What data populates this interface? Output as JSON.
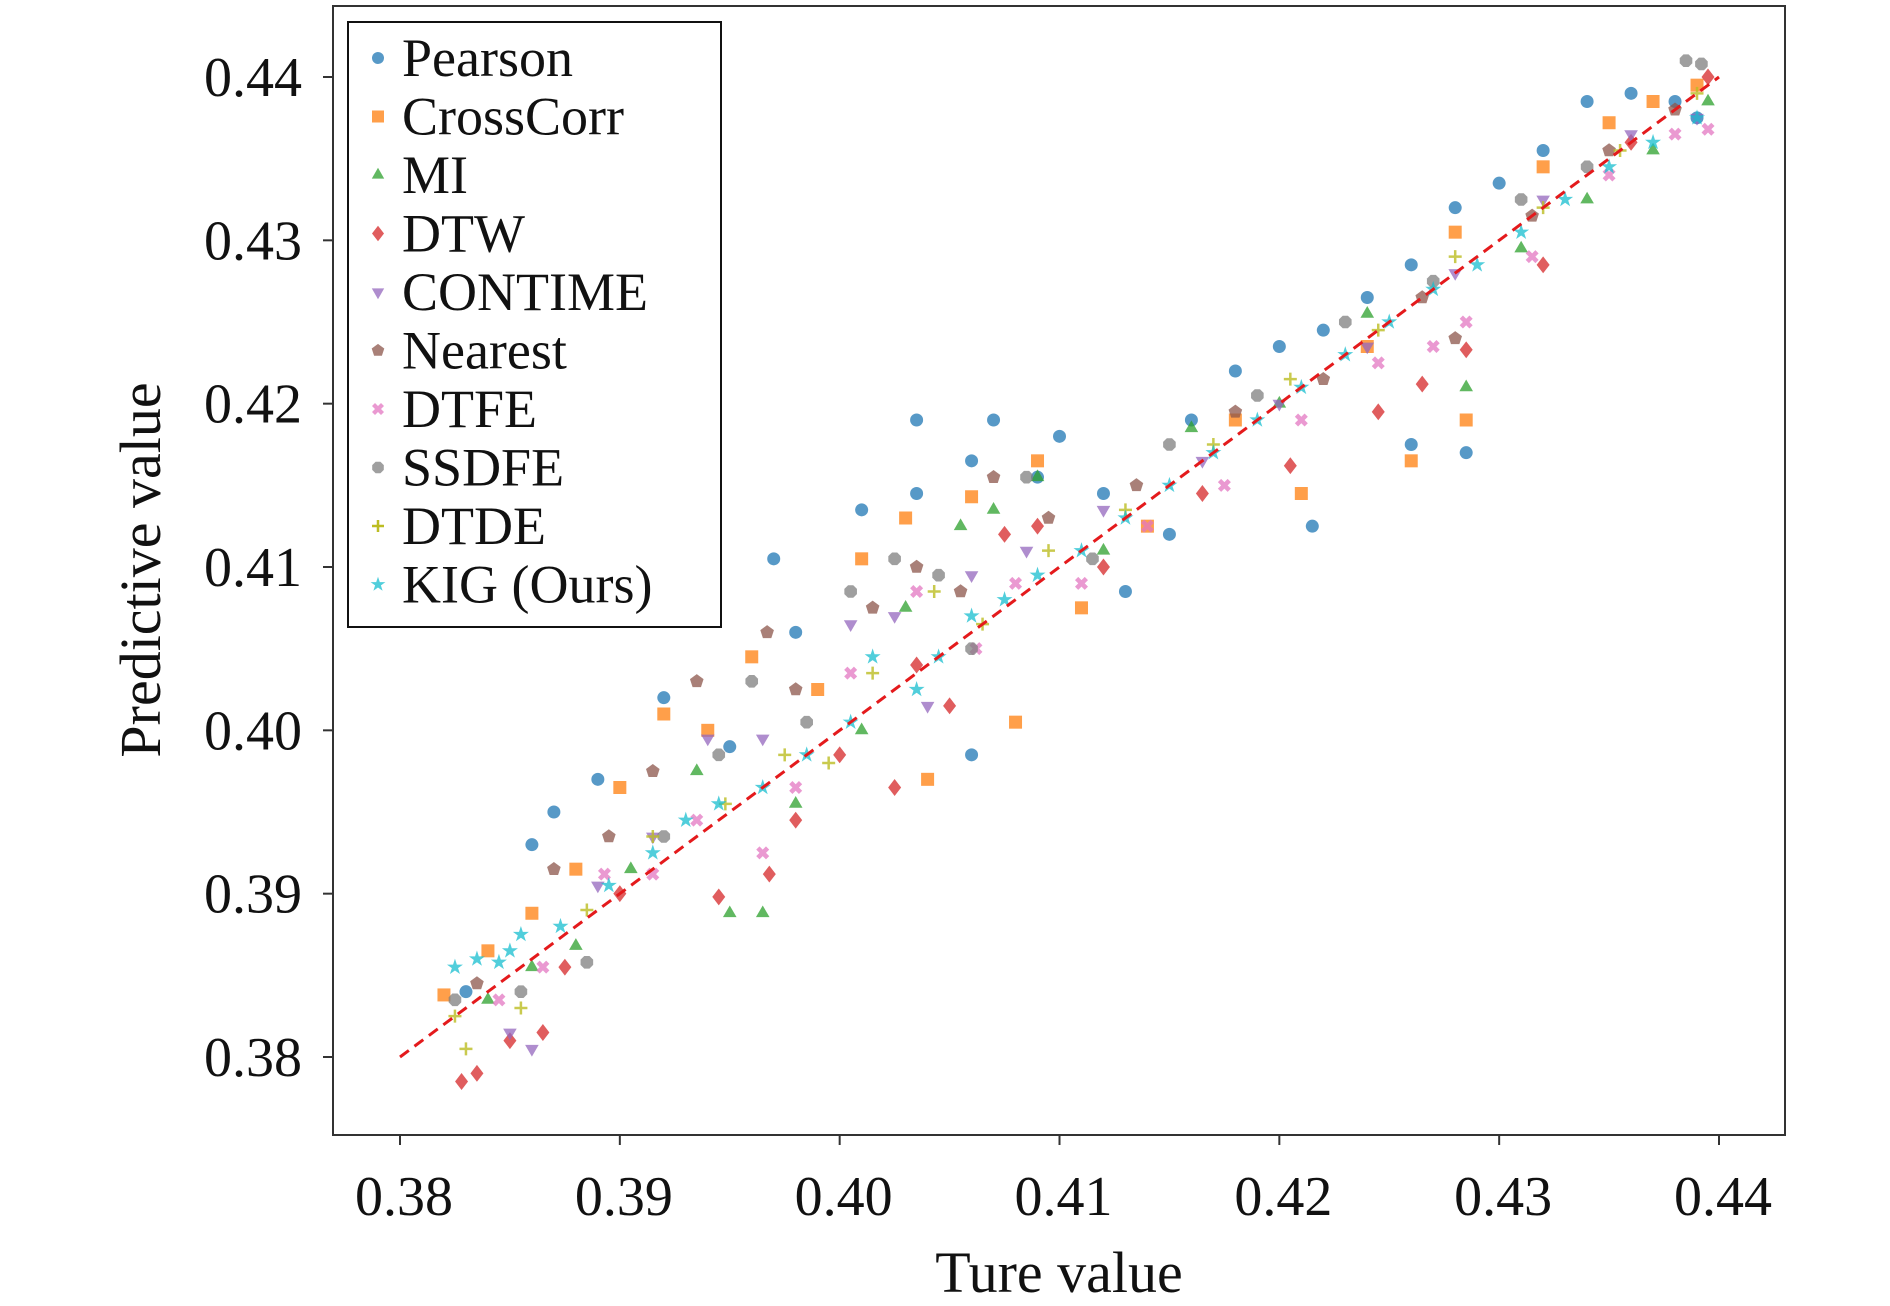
{
  "chart_data": {
    "type": "scatter",
    "xlabel": "Ture value",
    "ylabel": "Predictive value",
    "xlim": [
      0.377,
      0.443
    ],
    "ylim": [
      0.3755,
      0.4445
    ],
    "xticks": [
      "0.38",
      "0.39",
      "0.40",
      "0.41",
      "0.42",
      "0.43",
      "0.44"
    ],
    "yticks": [
      "0.38",
      "0.39",
      "0.40",
      "0.41",
      "0.42",
      "0.43",
      "0.44"
    ],
    "grid": false,
    "legend_position": "top-left",
    "reference_line": {
      "style": "dashed",
      "color": "#e41a1c",
      "from": [
        0.38,
        0.38
      ],
      "to": [
        0.44,
        0.44
      ]
    },
    "series": [
      {
        "name": "Pearson",
        "marker": "circle",
        "color": "#1f77b4",
        "points": [
          [
            0.383,
            0.384
          ],
          [
            0.386,
            0.393
          ],
          [
            0.387,
            0.395
          ],
          [
            0.389,
            0.397
          ],
          [
            0.392,
            0.402
          ],
          [
            0.395,
            0.399
          ],
          [
            0.397,
            0.4105
          ],
          [
            0.398,
            0.406
          ],
          [
            0.401,
            0.4135
          ],
          [
            0.4035,
            0.4145
          ],
          [
            0.4035,
            0.419
          ],
          [
            0.406,
            0.4165
          ],
          [
            0.407,
            0.419
          ],
          [
            0.406,
            0.3985
          ],
          [
            0.409,
            0.4155
          ],
          [
            0.41,
            0.418
          ],
          [
            0.412,
            0.4145
          ],
          [
            0.413,
            0.4085
          ],
          [
            0.415,
            0.412
          ],
          [
            0.416,
            0.419
          ],
          [
            0.418,
            0.422
          ],
          [
            0.42,
            0.4235
          ],
          [
            0.422,
            0.4245
          ],
          [
            0.4215,
            0.4125
          ],
          [
            0.424,
            0.4265
          ],
          [
            0.426,
            0.4285
          ],
          [
            0.426,
            0.4175
          ],
          [
            0.4285,
            0.417
          ],
          [
            0.428,
            0.432
          ],
          [
            0.43,
            0.4335
          ],
          [
            0.432,
            0.4355
          ],
          [
            0.434,
            0.4385
          ],
          [
            0.436,
            0.439
          ],
          [
            0.438,
            0.4385
          ],
          [
            0.439,
            0.4375
          ]
        ]
      },
      {
        "name": "CrossCorr",
        "marker": "square",
        "color": "#ff7f0e",
        "points": [
          [
            0.382,
            0.3838
          ],
          [
            0.384,
            0.3865
          ],
          [
            0.386,
            0.3888
          ],
          [
            0.388,
            0.3915
          ],
          [
            0.39,
            0.3965
          ],
          [
            0.392,
            0.401
          ],
          [
            0.394,
            0.4
          ],
          [
            0.396,
            0.4045
          ],
          [
            0.399,
            0.4025
          ],
          [
            0.401,
            0.4105
          ],
          [
            0.403,
            0.413
          ],
          [
            0.404,
            0.397
          ],
          [
            0.406,
            0.4143
          ],
          [
            0.408,
            0.4005
          ],
          [
            0.409,
            0.4165
          ],
          [
            0.411,
            0.4075
          ],
          [
            0.414,
            0.4125
          ],
          [
            0.418,
            0.419
          ],
          [
            0.421,
            0.4145
          ],
          [
            0.424,
            0.4235
          ],
          [
            0.426,
            0.4165
          ],
          [
            0.4285,
            0.419
          ],
          [
            0.428,
            0.4305
          ],
          [
            0.432,
            0.4345
          ],
          [
            0.435,
            0.4372
          ],
          [
            0.437,
            0.4385
          ],
          [
            0.439,
            0.4395
          ]
        ]
      },
      {
        "name": "MI",
        "marker": "triangle-up",
        "color": "#2ca02c",
        "points": [
          [
            0.384,
            0.3835
          ],
          [
            0.386,
            0.3855
          ],
          [
            0.388,
            0.3868
          ],
          [
            0.3905,
            0.3915
          ],
          [
            0.3935,
            0.3975
          ],
          [
            0.395,
            0.3888
          ],
          [
            0.3965,
            0.3888
          ],
          [
            0.398,
            0.3955
          ],
          [
            0.401,
            0.4
          ],
          [
            0.403,
            0.4075
          ],
          [
            0.4055,
            0.4125
          ],
          [
            0.407,
            0.4135
          ],
          [
            0.409,
            0.4155
          ],
          [
            0.412,
            0.411
          ],
          [
            0.416,
            0.4185
          ],
          [
            0.42,
            0.42
          ],
          [
            0.424,
            0.4255
          ],
          [
            0.4285,
            0.421
          ],
          [
            0.431,
            0.4295
          ],
          [
            0.434,
            0.4325
          ],
          [
            0.437,
            0.4355
          ],
          [
            0.4395,
            0.4385
          ]
        ]
      },
      {
        "name": "DTW",
        "marker": "diamond",
        "color": "#d62728",
        "points": [
          [
            0.3828,
            0.3785
          ],
          [
            0.3835,
            0.379
          ],
          [
            0.385,
            0.381
          ],
          [
            0.3865,
            0.3815
          ],
          [
            0.3875,
            0.3855
          ],
          [
            0.39,
            0.39
          ],
          [
            0.3945,
            0.3898
          ],
          [
            0.3968,
            0.3912
          ],
          [
            0.398,
            0.3945
          ],
          [
            0.4,
            0.3985
          ],
          [
            0.4025,
            0.3965
          ],
          [
            0.4035,
            0.404
          ],
          [
            0.405,
            0.4015
          ],
          [
            0.4075,
            0.412
          ],
          [
            0.409,
            0.4125
          ],
          [
            0.412,
            0.41
          ],
          [
            0.4165,
            0.4145
          ],
          [
            0.4205,
            0.4162
          ],
          [
            0.4245,
            0.4195
          ],
          [
            0.4265,
            0.4212
          ],
          [
            0.4285,
            0.4233
          ],
          [
            0.432,
            0.4285
          ],
          [
            0.436,
            0.436
          ],
          [
            0.4395,
            0.44
          ]
        ]
      },
      {
        "name": "CONTIME",
        "marker": "triangle-down",
        "color": "#9467bd",
        "points": [
          [
            0.385,
            0.3815
          ],
          [
            0.386,
            0.3805
          ],
          [
            0.389,
            0.3905
          ],
          [
            0.3915,
            0.3935
          ],
          [
            0.394,
            0.3995
          ],
          [
            0.3965,
            0.3995
          ],
          [
            0.4005,
            0.4065
          ],
          [
            0.4025,
            0.407
          ],
          [
            0.404,
            0.4015
          ],
          [
            0.406,
            0.4095
          ],
          [
            0.4085,
            0.411
          ],
          [
            0.412,
            0.4135
          ],
          [
            0.4165,
            0.4165
          ],
          [
            0.42,
            0.42
          ],
          [
            0.424,
            0.4235
          ],
          [
            0.428,
            0.428
          ],
          [
            0.432,
            0.4325
          ],
          [
            0.436,
            0.4365
          ],
          [
            0.439,
            0.4375
          ]
        ]
      },
      {
        "name": "Nearest",
        "marker": "pentagon",
        "color": "#8c564b",
        "points": [
          [
            0.3835,
            0.3845
          ],
          [
            0.387,
            0.3915
          ],
          [
            0.3895,
            0.3935
          ],
          [
            0.3915,
            0.3975
          ],
          [
            0.3935,
            0.403
          ],
          [
            0.3967,
            0.406
          ],
          [
            0.398,
            0.4025
          ],
          [
            0.4015,
            0.4075
          ],
          [
            0.4035,
            0.41
          ],
          [
            0.4055,
            0.4085
          ],
          [
            0.407,
            0.4155
          ],
          [
            0.4095,
            0.413
          ],
          [
            0.4135,
            0.415
          ],
          [
            0.418,
            0.4195
          ],
          [
            0.422,
            0.4215
          ],
          [
            0.4265,
            0.4265
          ],
          [
            0.428,
            0.424
          ],
          [
            0.4315,
            0.4315
          ],
          [
            0.435,
            0.4355
          ],
          [
            0.438,
            0.438
          ]
        ]
      },
      {
        "name": "DTFE",
        "marker": "x-filled",
        "color": "#e377c2",
        "points": [
          [
            0.3845,
            0.3835
          ],
          [
            0.3865,
            0.3855
          ],
          [
            0.3893,
            0.3912
          ],
          [
            0.3915,
            0.3912
          ],
          [
            0.3935,
            0.3945
          ],
          [
            0.3965,
            0.3925
          ],
          [
            0.398,
            0.3965
          ],
          [
            0.4005,
            0.4035
          ],
          [
            0.4035,
            0.4085
          ],
          [
            0.4062,
            0.405
          ],
          [
            0.408,
            0.409
          ],
          [
            0.411,
            0.409
          ],
          [
            0.414,
            0.4125
          ],
          [
            0.4175,
            0.415
          ],
          [
            0.421,
            0.419
          ],
          [
            0.4245,
            0.4225
          ],
          [
            0.427,
            0.4235
          ],
          [
            0.4285,
            0.425
          ],
          [
            0.4315,
            0.429
          ],
          [
            0.435,
            0.434
          ],
          [
            0.438,
            0.4365
          ],
          [
            0.4395,
            0.4368
          ]
        ]
      },
      {
        "name": "SSDFE",
        "marker": "octagon",
        "color": "#7f7f7f",
        "points": [
          [
            0.3825,
            0.3835
          ],
          [
            0.3855,
            0.384
          ],
          [
            0.3885,
            0.3858
          ],
          [
            0.392,
            0.3935
          ],
          [
            0.3945,
            0.3985
          ],
          [
            0.396,
            0.403
          ],
          [
            0.3985,
            0.4005
          ],
          [
            0.4005,
            0.4085
          ],
          [
            0.4025,
            0.4105
          ],
          [
            0.4045,
            0.4095
          ],
          [
            0.406,
            0.405
          ],
          [
            0.4085,
            0.4155
          ],
          [
            0.4115,
            0.4105
          ],
          [
            0.415,
            0.4175
          ],
          [
            0.419,
            0.4205
          ],
          [
            0.423,
            0.425
          ],
          [
            0.427,
            0.4275
          ],
          [
            0.431,
            0.4325
          ],
          [
            0.434,
            0.4345
          ],
          [
            0.4385,
            0.441
          ],
          [
            0.4392,
            0.4408
          ]
        ]
      },
      {
        "name": "DTDE",
        "marker": "plus",
        "color": "#bcbd22",
        "points": [
          [
            0.3825,
            0.3825
          ],
          [
            0.383,
            0.3805
          ],
          [
            0.3855,
            0.383
          ],
          [
            0.3885,
            0.389
          ],
          [
            0.3915,
            0.3935
          ],
          [
            0.3948,
            0.3955
          ],
          [
            0.3975,
            0.3985
          ],
          [
            0.3995,
            0.398
          ],
          [
            0.4015,
            0.4035
          ],
          [
            0.4043,
            0.4085
          ],
          [
            0.4065,
            0.4065
          ],
          [
            0.4095,
            0.411
          ],
          [
            0.413,
            0.4135
          ],
          [
            0.417,
            0.4175
          ],
          [
            0.4205,
            0.4215
          ],
          [
            0.4245,
            0.4245
          ],
          [
            0.428,
            0.429
          ],
          [
            0.432,
            0.432
          ],
          [
            0.4355,
            0.4355
          ],
          [
            0.439,
            0.439
          ]
        ]
      },
      {
        "name": "KIG (Ours)",
        "marker": "star",
        "color": "#17becf",
        "points": [
          [
            0.3825,
            0.3855
          ],
          [
            0.3835,
            0.386
          ],
          [
            0.3845,
            0.3858
          ],
          [
            0.385,
            0.3865
          ],
          [
            0.3855,
            0.3875
          ],
          [
            0.3873,
            0.388
          ],
          [
            0.3895,
            0.3905
          ],
          [
            0.3915,
            0.3925
          ],
          [
            0.393,
            0.3945
          ],
          [
            0.3945,
            0.3955
          ],
          [
            0.3965,
            0.3965
          ],
          [
            0.3985,
            0.3985
          ],
          [
            0.4005,
            0.4005
          ],
          [
            0.4015,
            0.4045
          ],
          [
            0.4035,
            0.4025
          ],
          [
            0.4045,
            0.4045
          ],
          [
            0.406,
            0.407
          ],
          [
            0.4075,
            0.408
          ],
          [
            0.409,
            0.4095
          ],
          [
            0.411,
            0.411
          ],
          [
            0.413,
            0.413
          ],
          [
            0.415,
            0.415
          ],
          [
            0.417,
            0.417
          ],
          [
            0.419,
            0.419
          ],
          [
            0.421,
            0.421
          ],
          [
            0.423,
            0.423
          ],
          [
            0.425,
            0.425
          ],
          [
            0.427,
            0.427
          ],
          [
            0.429,
            0.4285
          ],
          [
            0.431,
            0.4305
          ],
          [
            0.433,
            0.4325
          ],
          [
            0.435,
            0.4345
          ],
          [
            0.437,
            0.436
          ],
          [
            0.439,
            0.4375
          ]
        ]
      }
    ]
  }
}
